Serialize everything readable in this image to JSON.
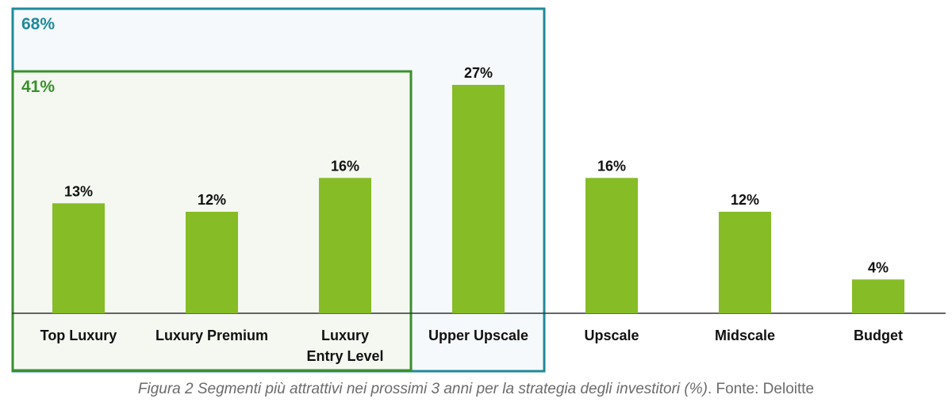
{
  "chart_data": {
    "type": "bar",
    "categories": [
      [
        "Top Luxury"
      ],
      [
        "Luxury Premium"
      ],
      [
        "Luxury",
        "Entry Level"
      ],
      [
        "Upper Upscale"
      ],
      [
        "Upscale"
      ],
      [
        "Midscale"
      ],
      [
        "Budget"
      ]
    ],
    "values": [
      13,
      12,
      16,
      27,
      16,
      12,
      4
    ],
    "value_labels": [
      "13%",
      "12%",
      "16%",
      "27%",
      "16%",
      "12%",
      "4%"
    ],
    "ylim": [
      0,
      30
    ],
    "bar_color": "#86bc25",
    "groups": [
      {
        "label": "68%",
        "color": "#1f8a9a",
        "fill": "#f5f9fb",
        "from": 0,
        "to": 3
      },
      {
        "label": "41%",
        "color": "#3a8f2c",
        "fill": "#f4f8f1",
        "from": 0,
        "to": 2
      }
    ]
  },
  "caption": {
    "italic": "Figura 2 Segmenti più attrattivi nei prossimi 3 anni per la strategia degli investitori (%)",
    "plain": ". Fonte: Deloitte"
  }
}
